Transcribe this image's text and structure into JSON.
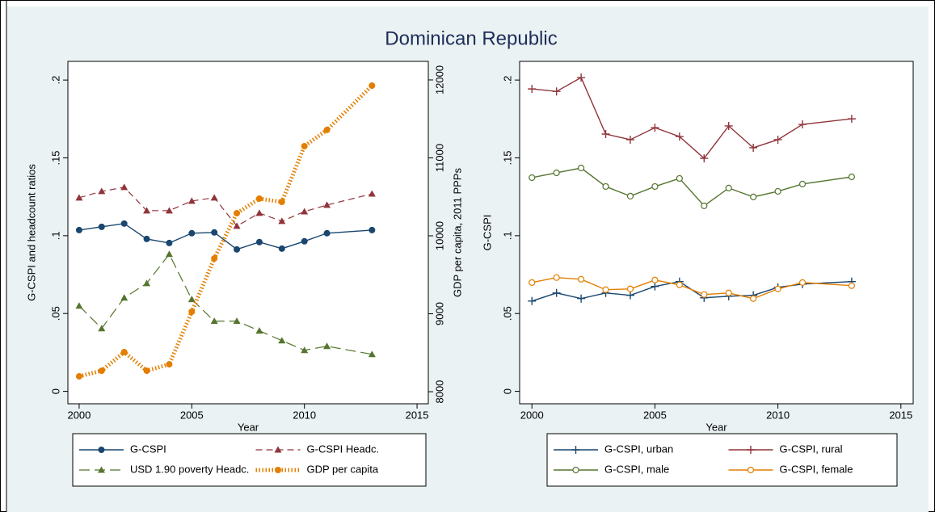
{
  "title": "Dominican Republic",
  "chart_data": [
    {
      "type": "line",
      "x": [
        2000,
        2001,
        2002,
        2003,
        2004,
        2005,
        2006,
        2007,
        2008,
        2009,
        2010,
        2011,
        2013
      ],
      "xlabel": "Year",
      "ylabel": "G-CSPI and headcount ratios",
      "y2label": "GDP per capita, 2011 PPPs",
      "xlim": [
        1999.5,
        2015.5
      ],
      "xticks": [
        2000,
        2005,
        2010,
        2015
      ],
      "ylim": [
        -0.008,
        0.212
      ],
      "yticks": [
        {
          "value": 0,
          "label": "0"
        },
        {
          "value": 0.05,
          "label": ".05"
        },
        {
          "value": 0.1,
          "label": ".1"
        },
        {
          "value": 0.15,
          "label": ".15"
        },
        {
          "value": 0.2,
          "label": ".2"
        }
      ],
      "y2lim": [
        7845,
        12238
      ],
      "y2ticks": [
        8000,
        9000,
        10000,
        11000,
        12000
      ],
      "grid": false,
      "series": [
        {
          "name": "G-CSPI",
          "color": "#1a476f",
          "dash": "solid",
          "marker": "circle",
          "values": [
            0.1036,
            0.1057,
            0.1078,
            0.0979,
            0.0953,
            0.1016,
            0.1021,
            0.0912,
            0.0959,
            0.0917,
            0.0964,
            0.1016,
            0.1036
          ]
        },
        {
          "name": "G-CSPI Headc.",
          "color": "#90353b",
          "dash": "dash",
          "marker": "triangle",
          "values": [
            0.1244,
            0.1285,
            0.1311,
            0.1161,
            0.1161,
            0.1223,
            0.1244,
            0.1062,
            0.1145,
            0.1093,
            0.1155,
            0.1197,
            0.1269
          ]
        },
        {
          "name": "USD 1.90 poverty Headc.",
          "color": "#55752f",
          "dash": "longdash",
          "marker": "triangle",
          "values": [
            0.0549,
            0.0404,
            0.0601,
            0.0694,
            0.0881,
            0.0591,
            0.0451,
            0.0451,
            0.0389,
            0.0326,
            0.0264,
            0.029,
            0.0238
          ]
        },
        {
          "name": "GDP per capita",
          "color": "#e37e00",
          "dash": "dot",
          "marker": "circle",
          "axis": "y2",
          "values": [
            8197,
            8269,
            8508,
            8269,
            8352,
            9026,
            9710,
            10290,
            10477,
            10435,
            11150,
            11358,
            11927
          ]
        }
      ]
    },
    {
      "type": "line",
      "x": [
        2000,
        2001,
        2002,
        2003,
        2004,
        2005,
        2006,
        2007,
        2008,
        2009,
        2010,
        2011,
        2013
      ],
      "xlabel": "Year",
      "ylabel": "G-CSPI",
      "xlim": [
        1999.5,
        2015.5
      ],
      "xticks": [
        2000,
        2005,
        2010,
        2015
      ],
      "ylim": [
        -0.008,
        0.212
      ],
      "yticks": [
        {
          "value": 0,
          "label": "0"
        },
        {
          "value": 0.05,
          "label": ".05"
        },
        {
          "value": 0.1,
          "label": ".1"
        },
        {
          "value": 0.15,
          "label": ".15"
        },
        {
          "value": 0.2,
          "label": ".2"
        }
      ],
      "grid": false,
      "series": [
        {
          "name": "G-CSPI, urban",
          "color": "#1a476f",
          "dash": "solid",
          "marker": "plus",
          "values": [
            0.058,
            0.0632,
            0.0596,
            0.0632,
            0.0617,
            0.0674,
            0.0705,
            0.0601,
            0.0611,
            0.0617,
            0.0668,
            0.0689,
            0.0705
          ]
        },
        {
          "name": "G-CSPI, rural",
          "color": "#90353b",
          "dash": "solid",
          "marker": "plus",
          "values": [
            0.1943,
            0.1927,
            0.2016,
            0.1653,
            0.1617,
            0.1694,
            0.1637,
            0.1497,
            0.1705,
            0.1565,
            0.1617,
            0.1715,
            0.1751
          ]
        },
        {
          "name": "G-CSPI, male",
          "color": "#55752f",
          "dash": "solid",
          "marker": "hollowcircle",
          "values": [
            0.1373,
            0.1404,
            0.1435,
            0.1316,
            0.1254,
            0.1316,
            0.1368,
            0.1192,
            0.1306,
            0.1249,
            0.1285,
            0.1332,
            0.1378
          ]
        },
        {
          "name": "G-CSPI, female",
          "color": "#e37e00",
          "dash": "solid",
          "marker": "hollowcircle",
          "values": [
            0.0699,
            0.0731,
            0.072,
            0.0653,
            0.0658,
            0.0715,
            0.0684,
            0.0622,
            0.0632,
            0.0596,
            0.0658,
            0.0699,
            0.0679
          ]
        }
      ]
    }
  ]
}
